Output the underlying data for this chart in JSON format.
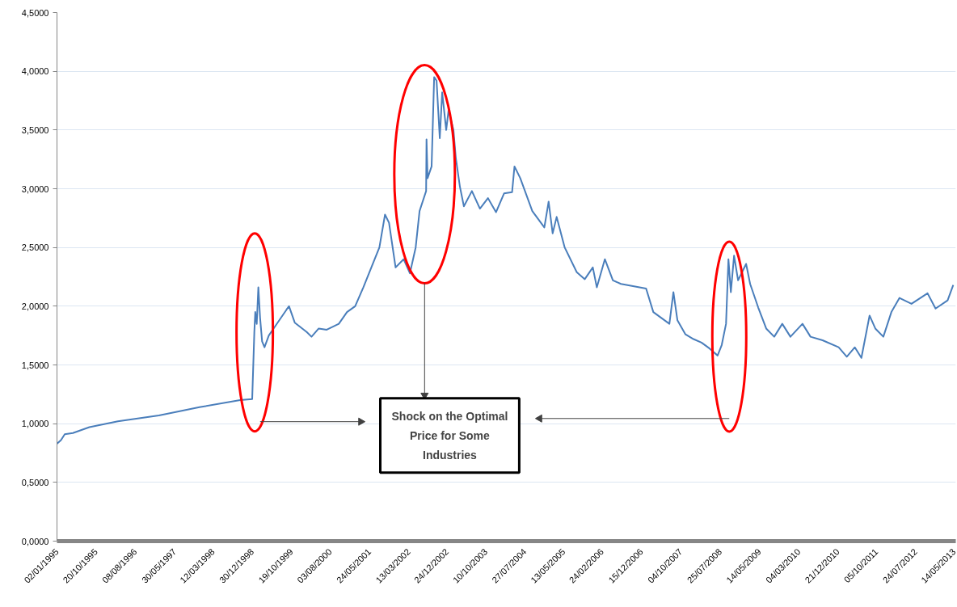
{
  "chart_data": {
    "type": "line",
    "x": [
      "1995-01-02",
      "1995-02-01",
      "1995-03-01",
      "1995-05-01",
      "1995-09-01",
      "1996-04-01",
      "1997-02-01",
      "1997-12-01",
      "1998-10-01",
      "1998-12-30",
      "1999-01-15",
      "1999-01-22",
      "1999-02-02",
      "1999-02-14",
      "1999-02-27",
      "1999-03-14",
      "1999-04-01",
      "1999-05-03",
      "1999-06-14",
      "1999-09-12",
      "1999-10-01",
      "1999-11-13",
      "2000-02-10",
      "2000-03-17",
      "2000-05-10",
      "2000-07-09",
      "2000-10-07",
      "2000-12-07",
      "2001-02-06",
      "2001-04-08",
      "2001-06-07",
      "2001-08-06",
      "2001-09-17",
      "2001-10-17",
      "2001-12-05",
      "2002-02-03",
      "2002-03-22",
      "2002-05-04",
      "2002-06-02",
      "2002-07-21",
      "2002-07-24",
      "2002-08-01",
      "2002-08-31",
      "2002-09-19",
      "2002-10-07",
      "2002-10-31",
      "2002-11-18",
      "2002-12-18",
      "2003-01-05",
      "2003-02-10",
      "2003-02-28",
      "2003-03-30",
      "2003-04-29",
      "2003-06-28",
      "2003-08-27",
      "2003-10-26",
      "2003-12-25",
      "2004-02-23",
      "2004-04-23",
      "2004-05-11",
      "2004-06-23",
      "2004-09-21",
      "2004-12-20",
      "2005-01-21",
      "2005-02-20",
      "2005-03-22",
      "2005-05-21",
      "2005-08-19",
      "2005-10-18",
      "2005-12-17",
      "2006-01-16",
      "2006-03-17",
      "2006-05-16",
      "2006-07-15",
      "2007-01-19",
      "2007-03-14",
      "2007-07-12",
      "2007-08-11",
      "2007-09-10",
      "2007-11-09",
      "2008-01-08",
      "2008-03-08",
      "2008-05-07",
      "2008-07-06",
      "2008-08-06",
      "2008-09-07",
      "2008-09-25",
      "2008-10-13",
      "2008-11-06",
      "2008-12-06",
      "2009-02-04",
      "2009-03-06",
      "2009-05-05",
      "2009-07-04",
      "2009-09-02",
      "2009-11-01",
      "2010-01-01",
      "2010-04-01",
      "2010-05-31",
      "2010-08-29",
      "2010-12-27",
      "2011-02-26",
      "2011-04-27",
      "2011-06-15",
      "2011-08-15",
      "2011-09-27",
      "2011-11-26",
      "2012-01-25",
      "2012-03-25",
      "2012-06-23",
      "2012-10-21",
      "2012-12-20",
      "2013-03-20",
      "2013-05-01"
    ],
    "series": [
      {
        "color": "#4a7ebb",
        "values": [
          0.83,
          0.86,
          0.91,
          0.92,
          0.97,
          1.02,
          1.07,
          1.14,
          1.2,
          1.21,
          1.78,
          1.95,
          1.85,
          2.16,
          1.9,
          1.7,
          1.65,
          1.75,
          1.82,
          1.97,
          2.0,
          1.86,
          1.78,
          1.74,
          1.81,
          1.8,
          1.85,
          1.95,
          2.0,
          2.16,
          2.33,
          2.5,
          2.78,
          2.71,
          2.33,
          2.4,
          2.28,
          2.5,
          2.81,
          2.98,
          3.42,
          3.09,
          3.19,
          3.95,
          3.92,
          3.43,
          3.82,
          3.5,
          3.67,
          3.5,
          3.26,
          3.02,
          2.85,
          2.98,
          2.83,
          2.92,
          2.8,
          2.96,
          2.97,
          3.19,
          3.09,
          2.81,
          2.67,
          2.89,
          2.62,
          2.76,
          2.5,
          2.29,
          2.23,
          2.33,
          2.16,
          2.4,
          2.22,
          2.19,
          2.15,
          1.95,
          1.85,
          2.12,
          1.88,
          1.76,
          1.72,
          1.69,
          1.64,
          1.58,
          1.67,
          1.85,
          2.4,
          2.12,
          2.43,
          2.22,
          2.36,
          2.19,
          1.99,
          1.81,
          1.74,
          1.85,
          1.74,
          1.85,
          1.74,
          1.71,
          1.65,
          1.57,
          1.65,
          1.56,
          1.92,
          1.81,
          1.74,
          1.95,
          2.07,
          2.02,
          2.11,
          1.98,
          2.05,
          2.18
        ]
      }
    ],
    "xlim": [
      "1995-01-02",
      "2013-05-20"
    ],
    "xticks": [
      {
        "value": "1995-01-02",
        "label": "02/01/1995"
      },
      {
        "value": "1995-10-20",
        "label": "20/10/1995"
      },
      {
        "value": "1996-08-08",
        "label": "08/08/1996"
      },
      {
        "value": "1997-05-30",
        "label": "30/05/1997"
      },
      {
        "value": "1998-03-12",
        "label": "12/03/1998"
      },
      {
        "value": "1998-12-30",
        "label": "30/12/1998"
      },
      {
        "value": "1999-10-19",
        "label": "19/10/1999"
      },
      {
        "value": "2000-08-03",
        "label": "03/08/2000"
      },
      {
        "value": "2001-05-24",
        "label": "24/05/2001"
      },
      {
        "value": "2002-03-13",
        "label": "13/03/2002"
      },
      {
        "value": "2002-12-24",
        "label": "24/12/2002"
      },
      {
        "value": "2003-10-10",
        "label": "10/10/2003"
      },
      {
        "value": "2004-07-27",
        "label": "27/07/2004"
      },
      {
        "value": "2005-05-13",
        "label": "13/05/2005"
      },
      {
        "value": "2006-02-24",
        "label": "24/02/2006"
      },
      {
        "value": "2006-12-15",
        "label": "15/12/2006"
      },
      {
        "value": "2007-10-04",
        "label": "04/10/2007"
      },
      {
        "value": "2008-07-25",
        "label": "25/07/2008"
      },
      {
        "value": "2009-05-14",
        "label": "14/05/2009"
      },
      {
        "value": "2010-03-04",
        "label": "04/03/2010"
      },
      {
        "value": "2010-12-21",
        "label": "21/12/2010"
      },
      {
        "value": "2011-10-05",
        "label": "05/10/2011"
      },
      {
        "value": "2012-07-24",
        "label": "24/07/2012"
      },
      {
        "value": "2013-05-14",
        "label": "14/05/2013"
      }
    ],
    "ylim": [
      0,
      4.5
    ],
    "yticks": [
      {
        "value": 0,
        "label": "0,0000"
      },
      {
        "value": 0.5,
        "label": "0,5000"
      },
      {
        "value": 1,
        "label": "1,0000"
      },
      {
        "value": 1.5,
        "label": "1,5000"
      },
      {
        "value": 2,
        "label": "2,0000"
      },
      {
        "value": 2.5,
        "label": "2,5000"
      },
      {
        "value": 3,
        "label": "3,0000"
      },
      {
        "value": 3.5,
        "label": "3,5000"
      },
      {
        "value": 4,
        "label": "4,0000"
      },
      {
        "value": 4.5,
        "label": "4,5000"
      }
    ],
    "grid": "y",
    "annotations": [
      "Shock on the Optimal Price for Some Industries"
    ]
  }
}
